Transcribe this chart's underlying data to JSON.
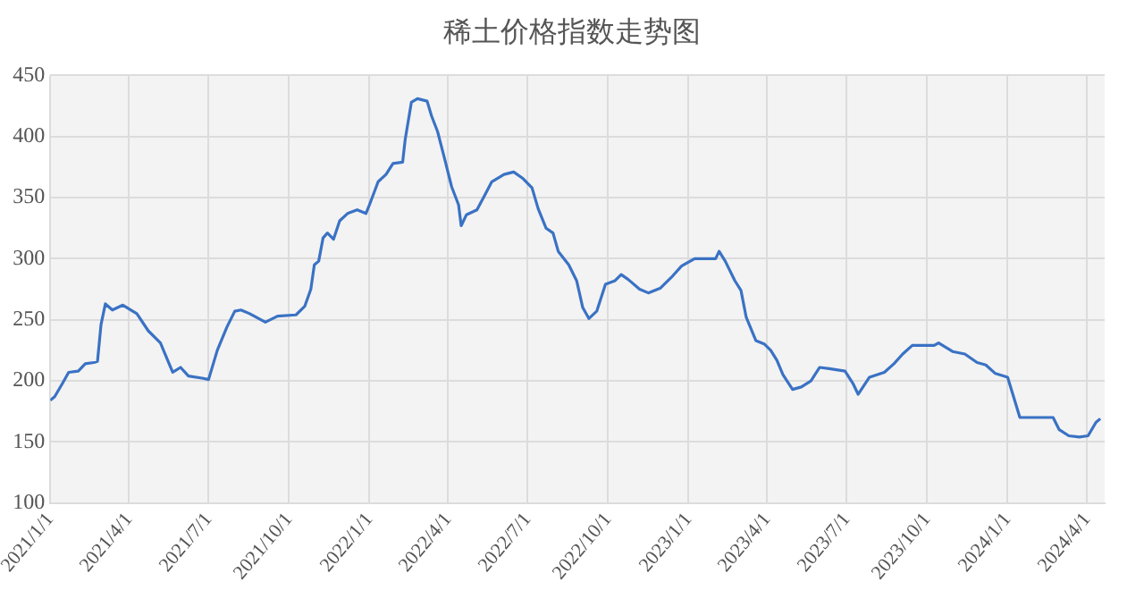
{
  "chart_data": {
    "type": "line",
    "title": "稀土价格指数走势图",
    "x": [
      "2021-01-01",
      "2021-01-06",
      "2021-01-15",
      "2021-01-22",
      "2021-02-02",
      "2021-02-10",
      "2021-02-20",
      "2021-02-24",
      "2021-02-28",
      "2021-03-05",
      "2021-03-13",
      "2021-03-25",
      "2021-04-10",
      "2021-04-23",
      "2021-05-07",
      "2021-05-14",
      "2021-05-21",
      "2021-05-30",
      "2021-06-08",
      "2021-06-25",
      "2021-07-01",
      "2021-07-11",
      "2021-07-22",
      "2021-07-31",
      "2021-08-07",
      "2021-08-17",
      "2021-09-04",
      "2021-09-18",
      "2021-10-09",
      "2021-10-19",
      "2021-10-26",
      "2021-10-30",
      "2021-11-04",
      "2021-11-09",
      "2021-11-14",
      "2021-11-21",
      "2021-11-28",
      "2021-12-07",
      "2021-12-18",
      "2021-12-28",
      "2022-01-01",
      "2022-01-11",
      "2022-01-20",
      "2022-01-28",
      "2022-02-08",
      "2022-02-11",
      "2022-02-18",
      "2022-02-25",
      "2022-03-08",
      "2022-03-13",
      "2022-03-20",
      "2022-03-29",
      "2022-04-05",
      "2022-04-13",
      "2022-04-16",
      "2022-04-22",
      "2022-05-04",
      "2022-05-13",
      "2022-05-21",
      "2022-06-04",
      "2022-06-15",
      "2022-06-25",
      "2022-07-06",
      "2022-07-13",
      "2022-07-22",
      "2022-07-30",
      "2022-08-05",
      "2022-08-17",
      "2022-08-26",
      "2022-09-02",
      "2022-09-09",
      "2022-09-18",
      "2022-09-28",
      "2022-10-09",
      "2022-10-16",
      "2022-10-24",
      "2022-11-06",
      "2022-11-16",
      "2022-11-30",
      "2022-12-14",
      "2022-12-24",
      "2023-01-08",
      "2023-02-01",
      "2023-02-05",
      "2023-02-12",
      "2023-02-23",
      "2023-03-02",
      "2023-03-08",
      "2023-03-19",
      "2023-03-29",
      "2023-04-05",
      "2023-04-12",
      "2023-04-19",
      "2023-04-30",
      "2023-05-10",
      "2023-05-21",
      "2023-05-31",
      "2023-06-11",
      "2023-06-29",
      "2023-07-08",
      "2023-07-14",
      "2023-07-27",
      "2023-08-13",
      "2023-08-24",
      "2023-09-03",
      "2023-09-14",
      "2023-10-09",
      "2023-10-14",
      "2023-10-30",
      "2023-11-13",
      "2023-11-27",
      "2023-12-07",
      "2023-12-18",
      "2024-01-01",
      "2024-01-15",
      "2024-02-22",
      "2024-02-29",
      "2024-03-11",
      "2024-03-23",
      "2024-04-02",
      "2024-04-11",
      "2024-04-16"
    ],
    "series": [
      {
        "color": "#3a72c4",
        "values": [
          184,
          187,
          198,
          207,
          208,
          214,
          215,
          216,
          246,
          263,
          258,
          262,
          255,
          241,
          231,
          219,
          207,
          211,
          204,
          202,
          201,
          225,
          244,
          257,
          258,
          255,
          248,
          253,
          254,
          261,
          275,
          295,
          298,
          317,
          321,
          316,
          331,
          337,
          340,
          337,
          344,
          363,
          369,
          378,
          379,
          398,
          428,
          431,
          429,
          417,
          404,
          379,
          359,
          344,
          327,
          336,
          340,
          352,
          363,
          369,
          371,
          366,
          358,
          341,
          325,
          321,
          306,
          295,
          282,
          260,
          251,
          257,
          279,
          282,
          287,
          283,
          275,
          272,
          276,
          286,
          294,
          300,
          300,
          306,
          298,
          282,
          274,
          252,
          233,
          230,
          225,
          217,
          205,
          193,
          195,
          200,
          211,
          210,
          208,
          198,
          189,
          203,
          207,
          214,
          222,
          229,
          229,
          231,
          224,
          222,
          215,
          213,
          206,
          203,
          170,
          170,
          160,
          155,
          154,
          155,
          166,
          169
        ]
      }
    ],
    "xlim": [
      "2021-01-01",
      "2024-04-21"
    ],
    "xticks": [
      {
        "value": "2021-01-01",
        "label": "2021/1/1"
      },
      {
        "value": "2021-04-01",
        "label": "2021/4/1"
      },
      {
        "value": "2021-07-01",
        "label": "2021/7/1"
      },
      {
        "value": "2021-10-01",
        "label": "2021/10/1"
      },
      {
        "value": "2022-01-01",
        "label": "2022/1/1"
      },
      {
        "value": "2022-04-01",
        "label": "2022/4/1"
      },
      {
        "value": "2022-07-01",
        "label": "2022/7/1"
      },
      {
        "value": "2022-10-01",
        "label": "2022/10/1"
      },
      {
        "value": "2023-01-01",
        "label": "2023/1/1"
      },
      {
        "value": "2023-04-01",
        "label": "2023/4/1"
      },
      {
        "value": "2023-07-01",
        "label": "2023/7/1"
      },
      {
        "value": "2023-10-01",
        "label": "2023/10/1"
      },
      {
        "value": "2024-01-01",
        "label": "2024/1/1"
      },
      {
        "value": "2024-04-01",
        "label": "2024/4/1"
      }
    ],
    "ylim": [
      100,
      450
    ],
    "yticks": [
      100,
      150,
      200,
      250,
      300,
      350,
      400,
      450
    ],
    "grid": true,
    "legend": false,
    "marker": "none",
    "line_style": "solid"
  }
}
